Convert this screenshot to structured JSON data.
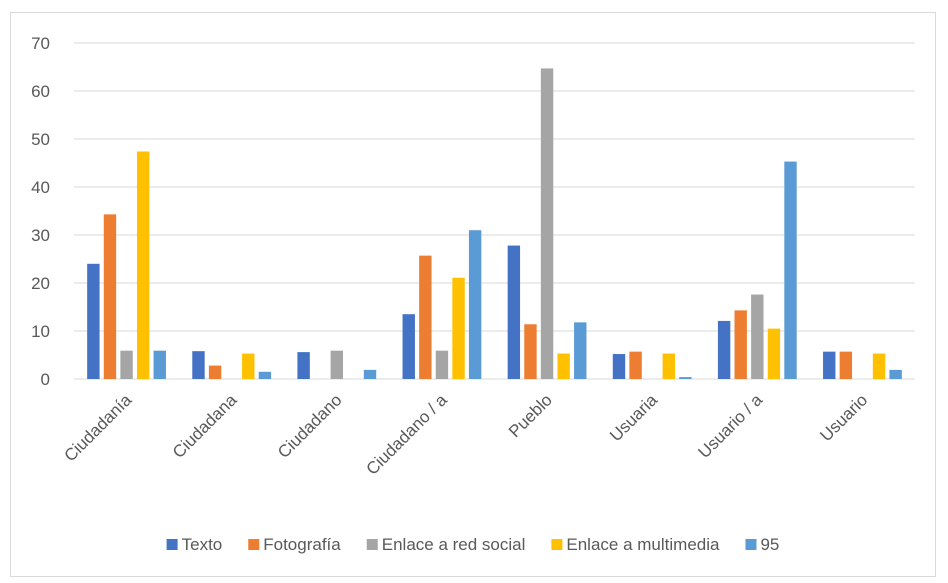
{
  "chart_data": {
    "type": "bar",
    "title": "",
    "xlabel": "",
    "ylabel": "",
    "ylim": [
      0,
      70
    ],
    "yticks": [
      0,
      10,
      20,
      30,
      40,
      50,
      60,
      70
    ],
    "grid": true,
    "legend_position": "bottom",
    "categories": [
      "Ciudadanía",
      "Ciudadana",
      "Ciudadano",
      "Ciudadano / a",
      "Pueblo",
      "Usuaria",
      "Usuario / a",
      "Usuario"
    ],
    "series": [
      {
        "name": "Texto",
        "color": "#4472C4",
        "values": [
          24,
          5.8,
          5.6,
          13.5,
          27.8,
          5.2,
          12.1,
          5.7
        ]
      },
      {
        "name": "Fotografía",
        "color": "#ED7D31",
        "values": [
          34.3,
          2.8,
          0,
          25.7,
          11.4,
          5.7,
          14.3,
          5.7
        ]
      },
      {
        "name": "Enlace a red social",
        "color": "#A5A5A5",
        "values": [
          5.9,
          0,
          5.9,
          5.9,
          64.7,
          0,
          17.6,
          0
        ]
      },
      {
        "name": "Enlace a multimedia",
        "color": "#FFC000",
        "values": [
          47.4,
          5.3,
          0,
          21.1,
          5.3,
          5.3,
          10.5,
          5.3
        ]
      },
      {
        "name": "95",
        "color": "#5B9BD5",
        "values": [
          5.9,
          1.5,
          1.9,
          31,
          11.8,
          0.4,
          45.3,
          1.9
        ]
      }
    ]
  }
}
